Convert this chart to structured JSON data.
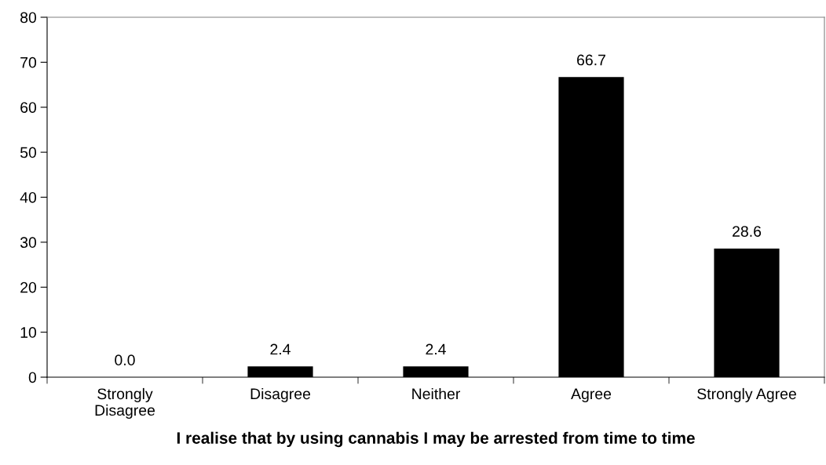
{
  "chart_data": {
    "type": "bar",
    "xlabel": "I realise that by using cannabis I may be arrested from time to time",
    "categories": [
      "Strongly\nDisagree",
      "Disagree",
      "Neither",
      "Agree",
      "Strongly Agree"
    ],
    "values": [
      0.0,
      2.4,
      2.4,
      66.7,
      28.6
    ],
    "value_labels": [
      "0.0",
      "2.4",
      "2.4",
      "66.7",
      "28.6"
    ],
    "color": "#000000",
    "ylim": [
      0,
      80
    ],
    "yticks": [
      0,
      10,
      20,
      30,
      40,
      50,
      60,
      70,
      80
    ],
    "grid": false,
    "legend": false
  }
}
